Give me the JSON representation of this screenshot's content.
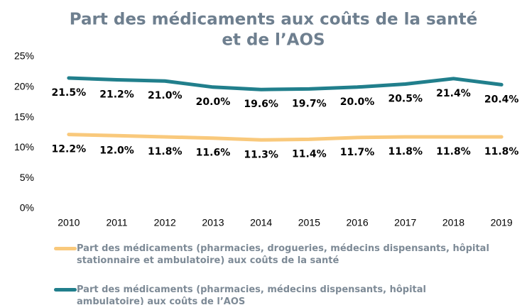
{
  "chart_data": {
    "type": "line",
    "title": [
      "Part des médicaments aux coûts de la santé",
      "et de l’AOS"
    ],
    "categories": [
      "2010",
      "2011",
      "2012",
      "2013",
      "2014",
      "2015",
      "2016",
      "2017",
      "2018",
      "2019"
    ],
    "series": [
      {
        "name": "Part des médicaments (pharmacies, drogueries, médecins dispensants, hôpital stationnaire et ambulatoire) aux coûts de la santé",
        "color": "#f9c97c",
        "values": [
          12.2,
          12.0,
          11.8,
          11.6,
          11.3,
          11.4,
          11.7,
          11.8,
          11.8,
          11.8
        ],
        "value_labels": [
          "12.2%",
          "12.0%",
          "11.8%",
          "11.6%",
          "11.3%",
          "11.4%",
          "11.7%",
          "11.8%",
          "11.8%",
          "11.8%"
        ]
      },
      {
        "name": "Part des médicaments (pharmacies, médecins dispensants, hôpital ambulatoire) aux coûts de l’AOS",
        "color": "#217f8c",
        "values": [
          21.5,
          21.2,
          21.0,
          20.0,
          19.6,
          19.7,
          20.0,
          20.5,
          21.4,
          20.4
        ],
        "value_labels": [
          "21.5%",
          "21.2%",
          "21.0%",
          "20.0%",
          "19.6%",
          "19.7%",
          "20.0%",
          "20.5%",
          "21.4%",
          "20.4%"
        ]
      }
    ],
    "ylim": [
      0,
      25
    ],
    "yticks": [
      {
        "value": 0,
        "label": "0%"
      },
      {
        "value": 5,
        "label": "5%"
      },
      {
        "value": 10,
        "label": "10%"
      },
      {
        "value": 15,
        "label": "15%"
      },
      {
        "value": 20,
        "label": "20%"
      },
      {
        "value": 25,
        "label": "25%"
      }
    ],
    "grid": false,
    "legend": "bottom"
  }
}
